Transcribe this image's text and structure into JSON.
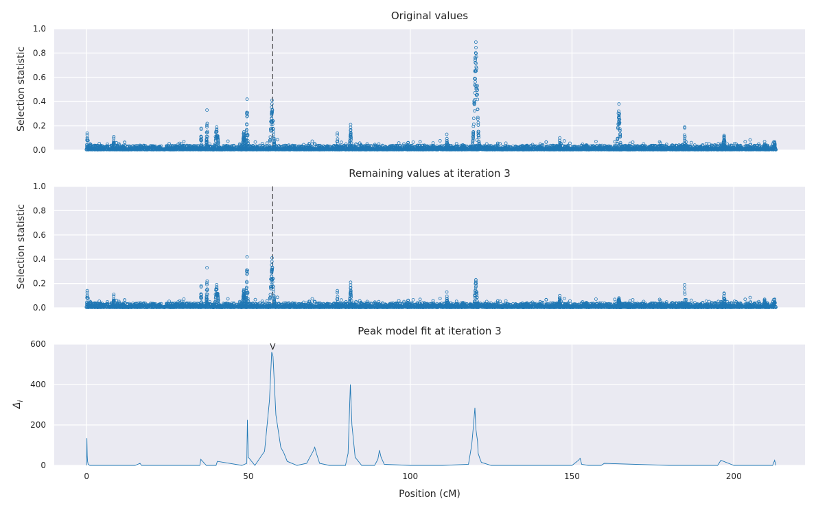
{
  "chart_data": [
    {
      "type": "scatter",
      "title": "Original values",
      "ylabel": "Selection statistic",
      "xlabel": "",
      "xlim": [
        -10,
        222
      ],
      "ylim": [
        0,
        1.0
      ],
      "yticks": [
        "0.0",
        "0.2",
        "0.4",
        "0.6",
        "0.8",
        "1.0"
      ],
      "marker_x": 57.5,
      "peaks": [
        {
          "x": 0.2,
          "y": 0.14,
          "w": 0.2
        },
        {
          "x": 8.4,
          "y": 0.11,
          "w": 0.2
        },
        {
          "x": 35.4,
          "y": 0.18,
          "w": 0.2
        },
        {
          "x": 37.2,
          "y": 0.33,
          "w": 0.2
        },
        {
          "x": 40.2,
          "y": 0.19,
          "w": 0.8
        },
        {
          "x": 48.6,
          "y": 0.15,
          "w": 0.6
        },
        {
          "x": 49.6,
          "y": 0.42,
          "w": 0.3
        },
        {
          "x": 57.3,
          "y": 0.41,
          "w": 0.8
        },
        {
          "x": 77.5,
          "y": 0.14,
          "w": 0.2
        },
        {
          "x": 81.6,
          "y": 0.21,
          "w": 0.4
        },
        {
          "x": 111.3,
          "y": 0.13,
          "w": 0.2
        },
        {
          "x": 120.3,
          "y": 0.89,
          "w": 1.0
        },
        {
          "x": 164.5,
          "y": 0.38,
          "w": 0.6
        },
        {
          "x": 146.2,
          "y": 0.1,
          "w": 0.2
        },
        {
          "x": 184.8,
          "y": 0.19,
          "w": 0.2
        },
        {
          "x": 197.0,
          "y": 0.12,
          "w": 0.4
        },
        {
          "x": 209.5,
          "y": 0.07,
          "w": 0.2
        },
        {
          "x": 212.6,
          "y": 0.07,
          "w": 0.3
        }
      ]
    },
    {
      "type": "scatter",
      "title": "Remaining values at iteration 3",
      "ylabel": "Selection statistic",
      "xlabel": "",
      "xlim": [
        -10,
        222
      ],
      "ylim": [
        0,
        1.0
      ],
      "yticks": [
        "0.0",
        "0.2",
        "0.4",
        "0.6",
        "0.8",
        "1.0"
      ],
      "marker_x": 57.5,
      "peaks": [
        {
          "x": 0.2,
          "y": 0.14,
          "w": 0.2
        },
        {
          "x": 8.4,
          "y": 0.11,
          "w": 0.2
        },
        {
          "x": 35.4,
          "y": 0.18,
          "w": 0.2
        },
        {
          "x": 37.2,
          "y": 0.33,
          "w": 0.2
        },
        {
          "x": 40.2,
          "y": 0.19,
          "w": 0.8
        },
        {
          "x": 48.6,
          "y": 0.15,
          "w": 0.6
        },
        {
          "x": 49.6,
          "y": 0.42,
          "w": 0.3
        },
        {
          "x": 57.3,
          "y": 0.41,
          "w": 0.8
        },
        {
          "x": 77.5,
          "y": 0.14,
          "w": 0.2
        },
        {
          "x": 81.6,
          "y": 0.21,
          "w": 0.4
        },
        {
          "x": 111.3,
          "y": 0.13,
          "w": 0.2
        },
        {
          "x": 120.3,
          "y": 0.23,
          "w": 0.6
        },
        {
          "x": 164.5,
          "y": 0.08,
          "w": 0.6
        },
        {
          "x": 146.2,
          "y": 0.1,
          "w": 0.2
        },
        {
          "x": 184.8,
          "y": 0.19,
          "w": 0.2
        },
        {
          "x": 197.0,
          "y": 0.12,
          "w": 0.4
        },
        {
          "x": 209.5,
          "y": 0.07,
          "w": 0.2
        },
        {
          "x": 212.6,
          "y": 0.07,
          "w": 0.3
        }
      ]
    },
    {
      "type": "line",
      "title": "Peak model fit at iteration 3",
      "ylabel": "Δ",
      "ylabel_sub": "i",
      "xlabel": "Position (cM)",
      "xlim": [
        -10,
        222
      ],
      "ylim": [
        0,
        600
      ],
      "xticks": [
        "0",
        "50",
        "100",
        "150",
        "200"
      ],
      "yticks": [
        "0",
        "200",
        "400",
        "600"
      ],
      "marker_x": 57.5,
      "marker_label": "V",
      "x": [
        0,
        0.1,
        0.2,
        0.3,
        0.5,
        1,
        15,
        16.5,
        17,
        26,
        35,
        35.3,
        37,
        40,
        40.4,
        48,
        49.5,
        49.7,
        50,
        52,
        55,
        56.5,
        57.2,
        57.6,
        58.5,
        60,
        61,
        62,
        65,
        68,
        69,
        70,
        70.5,
        71,
        72,
        75,
        80,
        80.8,
        81.5,
        82,
        83,
        85,
        89,
        90,
        90.5,
        91,
        92,
        100,
        110,
        118,
        119,
        119.5,
        120,
        120.3,
        120.8,
        121,
        121.5,
        122,
        125,
        130,
        140,
        150,
        152,
        152.5,
        153,
        155,
        159,
        160,
        180,
        195,
        196,
        200,
        210,
        212,
        212.6,
        213
      ],
      "y": [
        0,
        135,
        50,
        20,
        5,
        0,
        0,
        10,
        0,
        0,
        0,
        30,
        0,
        0,
        20,
        0,
        10,
        225,
        40,
        0,
        70,
        320,
        560,
        540,
        250,
        90,
        60,
        20,
        0,
        10,
        40,
        70,
        90,
        60,
        10,
        0,
        0,
        60,
        400,
        200,
        40,
        0,
        0,
        30,
        75,
        40,
        5,
        0,
        0,
        5,
        100,
        190,
        285,
        180,
        120,
        60,
        35,
        15,
        0,
        0,
        0,
        0,
        25,
        35,
        5,
        0,
        0,
        10,
        0,
        0,
        25,
        0,
        0,
        0,
        25,
        0
      ]
    }
  ]
}
